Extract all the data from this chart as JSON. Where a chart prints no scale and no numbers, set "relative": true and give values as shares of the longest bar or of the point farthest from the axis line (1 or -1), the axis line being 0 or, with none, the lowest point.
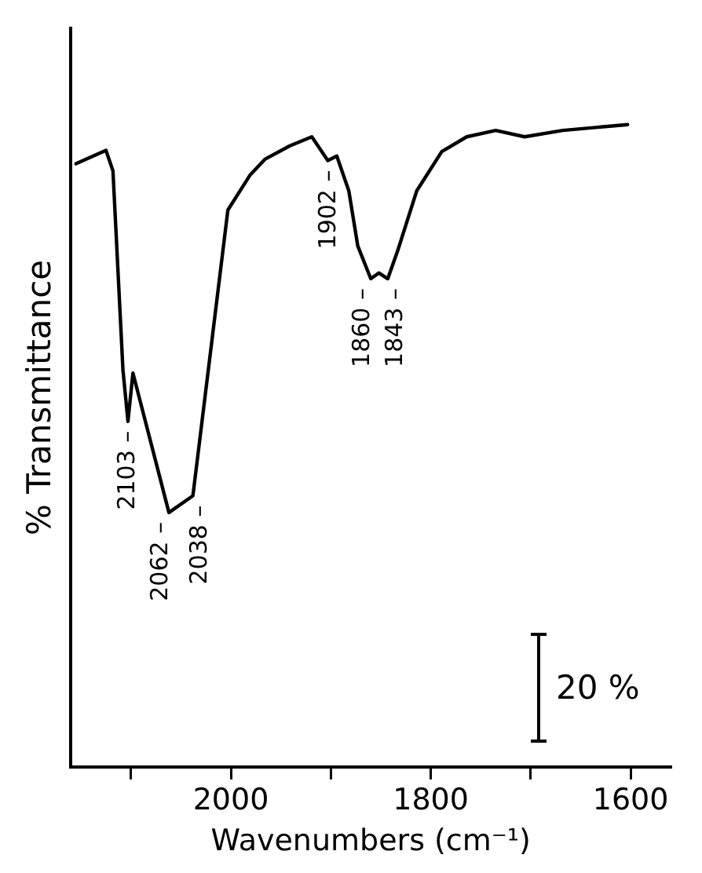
{
  "chart_data": {
    "type": "line",
    "relative": true,
    "xlabel": "Wavenumbers (cm⁻¹)",
    "ylabel": "% Transmittance",
    "x": [
      2155,
      2125,
      2118,
      2108,
      2103,
      2098,
      2062,
      2038,
      2003,
      1981,
      1966,
      1941,
      1919,
      1903,
      1894,
      1882,
      1873,
      1860,
      1852,
      1843,
      1833,
      1814,
      1789,
      1764,
      1735,
      1706,
      1668,
      1603
    ],
    "series": [
      {
        "color": "#000000",
        "values": [
          0.939,
          0.96,
          0.928,
          0.618,
          0.538,
          0.613,
          0.396,
          0.422,
          0.867,
          0.921,
          0.946,
          0.967,
          0.981,
          0.944,
          0.951,
          0.897,
          0.811,
          0.76,
          0.769,
          0.76,
          0.804,
          0.897,
          0.958,
          0.981,
          0.991,
          0.981,
          0.991,
          1
        ]
      }
    ],
    "xlim": [
      2160,
      1560
    ],
    "xticks": [
      {
        "value": 2100,
        "label": null
      },
      2000,
      {
        "value": 1900,
        "label": null
      },
      1800,
      {
        "value": 1700,
        "label": null
      },
      1600
    ],
    "grid": false,
    "legend": false,
    "marker": "none",
    "line_style": "solid",
    "annotations": [
      {
        "text": "2103 –",
        "x": 2103,
        "y": 0.538
      },
      {
        "text": "2062 –",
        "x": 2062,
        "y": 0.396
      },
      {
        "text": "2038 –",
        "x": 2038,
        "y": 0.422
      },
      {
        "text": "1902 –",
        "x": 1902,
        "y": 0.944
      },
      {
        "text": "1860 –",
        "x": 1860,
        "y": 0.76
      },
      {
        "text": "1843 –",
        "x": 1843,
        "y": 0.76
      },
      "20 %"
    ]
  }
}
